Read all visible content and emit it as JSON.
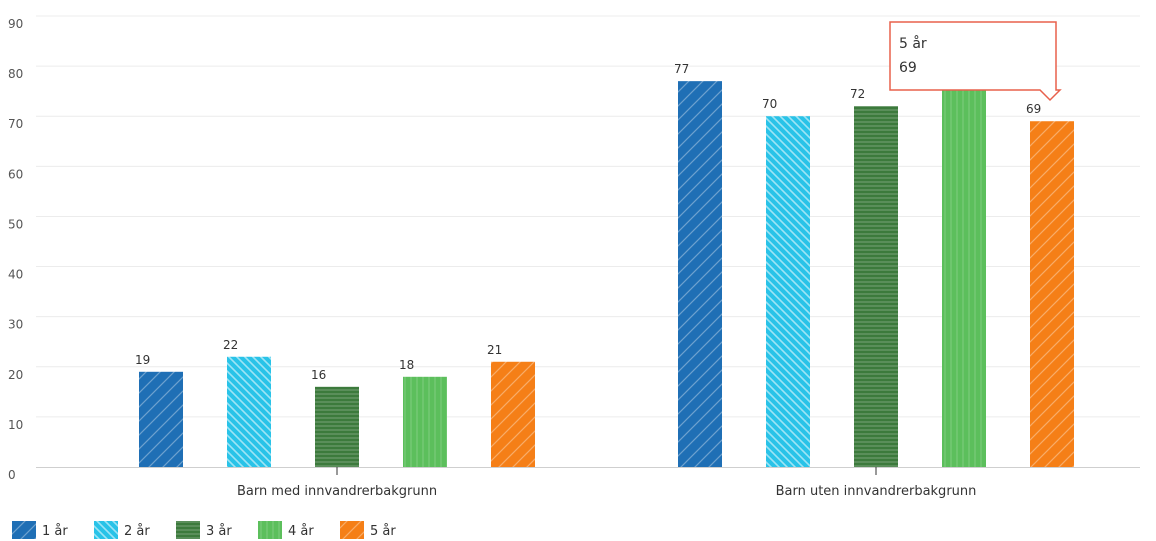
{
  "chart_data": {
    "type": "bar",
    "categories": [
      "Barn med innvandrerbakgrunn",
      "Barn uten innvandrerbakgrunn"
    ],
    "series": [
      {
        "name": "1 år",
        "values": [
          19,
          77
        ],
        "color": "#1f6fb5",
        "pattern": "diagonal"
      },
      {
        "name": "2 år",
        "values": [
          22,
          70
        ],
        "color": "#29c3e8",
        "pattern": "diagonal-dense"
      },
      {
        "name": "3 år",
        "values": [
          16,
          72
        ],
        "color": "#3c7a3c",
        "pattern": "horizontal"
      },
      {
        "name": "4 år",
        "values": [
          18,
          77
        ],
        "color": "#5cbf5c",
        "pattern": "vertical"
      },
      {
        "name": "5 år",
        "values": [
          21,
          69
        ],
        "color": "#f57f17",
        "pattern": "diagonal"
      }
    ],
    "ylim": [
      0,
      90
    ],
    "yticks": [
      0,
      10,
      20,
      30,
      40,
      50,
      60,
      70,
      80,
      90
    ],
    "grid": true,
    "legend_position": "bottom-left",
    "data_labels": [
      [
        "19",
        "22",
        "16",
        "18",
        "21"
      ],
      [
        "77",
        "70",
        "72",
        "",
        "69"
      ]
    ],
    "tooltip": {
      "series": "5 år",
      "value": "69",
      "category_index": 1,
      "series_index": 4,
      "border_color": "#e8604c"
    }
  }
}
